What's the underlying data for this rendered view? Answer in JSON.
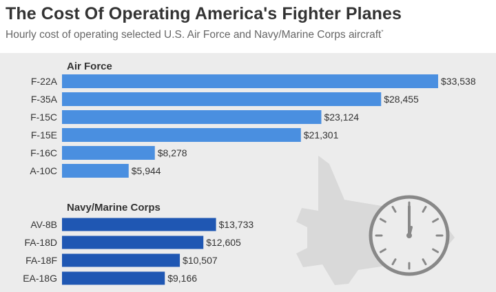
{
  "title": "The Cost Of Operating America's Fighter Planes",
  "subtitle": "Hourly cost of operating selected U.S. Air Force and Navy/Marine Corps aircraft",
  "subtitle_mark": "*",
  "colors": {
    "air_force": "#4a8fe0",
    "navy": "#1f57b3",
    "text": "#333333",
    "panel": "#ececec",
    "decoration": "#d9d9d9"
  },
  "chart_data": {
    "type": "bar",
    "orientation": "horizontal",
    "value_prefix": "$",
    "xlim": [
      0,
      33538
    ],
    "groups": [
      {
        "name": "Air Force",
        "color": "#4a8fe0",
        "categories": [
          "F-22A",
          "F-35A",
          "F-15C",
          "F-15E",
          "F-16C",
          "A-10C"
        ],
        "values": [
          33538,
          28455,
          23124,
          21301,
          8278,
          5944
        ],
        "labels": [
          "$33,538",
          "$28,455",
          "$23,124",
          "$21,301",
          "$8,278",
          "$5,944"
        ]
      },
      {
        "name": "Navy/Marine Corps",
        "color": "#1f57b3",
        "categories": [
          "AV-8B",
          "FA-18D",
          "FA-18F",
          "EA-18G"
        ],
        "values": [
          13733,
          12605,
          10507,
          9166
        ],
        "labels": [
          "$13,733",
          "$12,605",
          "$10,507",
          "$9,166"
        ]
      }
    ]
  }
}
